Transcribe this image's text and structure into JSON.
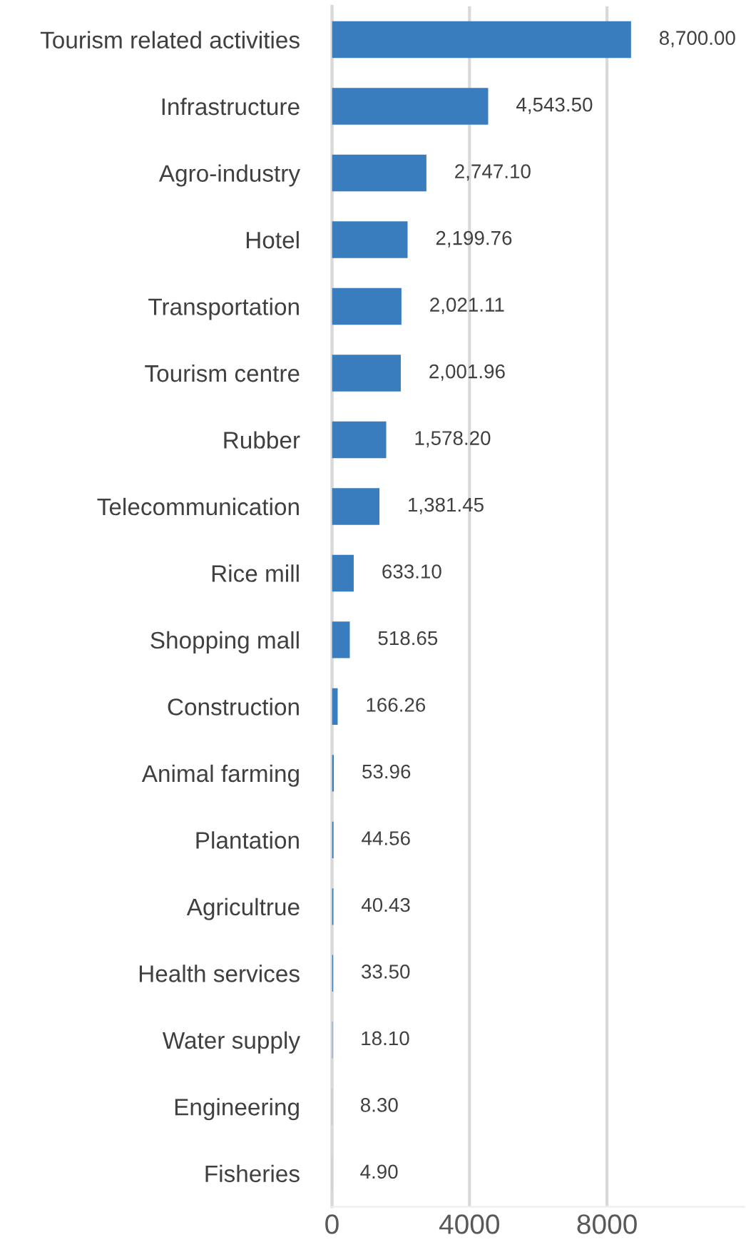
{
  "chart_data": {
    "type": "bar",
    "orientation": "horizontal",
    "categories": [
      "Tourism related activities",
      "Infrastructure",
      "Agro-industry",
      "Hotel",
      "Transportation",
      "Tourism centre",
      "Rubber",
      "Telecommunication",
      "Rice mill",
      "Shopping mall",
      "Construction",
      "Animal farming",
      "Plantation",
      "Agricultrue",
      "Health services",
      "Water supply",
      "Engineering",
      "Fisheries"
    ],
    "values": [
      8700.0,
      4543.5,
      2747.1,
      2199.76,
      2021.11,
      2001.96,
      1578.2,
      1381.45,
      633.1,
      518.65,
      166.26,
      53.96,
      44.56,
      40.43,
      33.5,
      18.1,
      8.3,
      4.9
    ],
    "value_labels": [
      "8,700.00",
      "4,543.50",
      "2,747.10",
      "2,199.76",
      "2,021.11",
      "2,001.96",
      "1,578.20",
      "1,381.45",
      "633.10",
      "518.65",
      "166.26",
      "53.96",
      "44.56",
      "40.43",
      "33.50",
      "18.10",
      "8.30",
      "4.90"
    ],
    "color": "#3a7dbf",
    "xlim": [
      0,
      12000
    ],
    "xticks": [
      0,
      4000,
      8000
    ],
    "grid": "x",
    "legend": false
  }
}
